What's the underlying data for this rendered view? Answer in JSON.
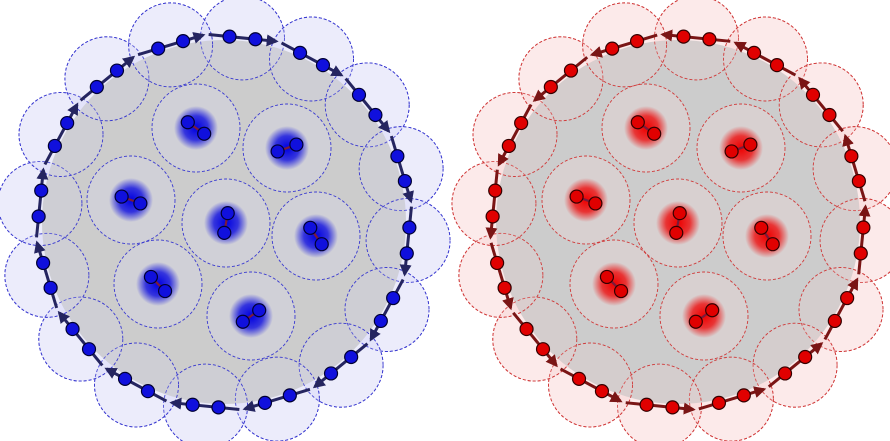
{
  "panels": [
    {
      "id": "left",
      "colors": {
        "particle_fill": "#1010dd",
        "particle_stroke": "#000033",
        "domain_fill": "#dcdcf8",
        "domain_stroke": "#3a3ad0",
        "trail": "#0000e0",
        "arrow": "#252560",
        "link": "#7a1a3a",
        "disk": "#c8c8c8"
      },
      "boundary_direction": "clockwise",
      "boundary_dimers": 16,
      "inner_dimers": 7
    },
    {
      "id": "right",
      "colors": {
        "particle_fill": "#e00000",
        "particle_stroke": "#330000",
        "domain_fill": "#fbdada",
        "domain_stroke": "#d03a3a",
        "trail": "#ee0000",
        "arrow": "#7a1515",
        "link": "#7a1a3a",
        "disk": "#c8c8c8"
      },
      "boundary_direction": "counterclockwise",
      "boundary_dimers": 16,
      "inner_dimers": 7
    }
  ]
}
